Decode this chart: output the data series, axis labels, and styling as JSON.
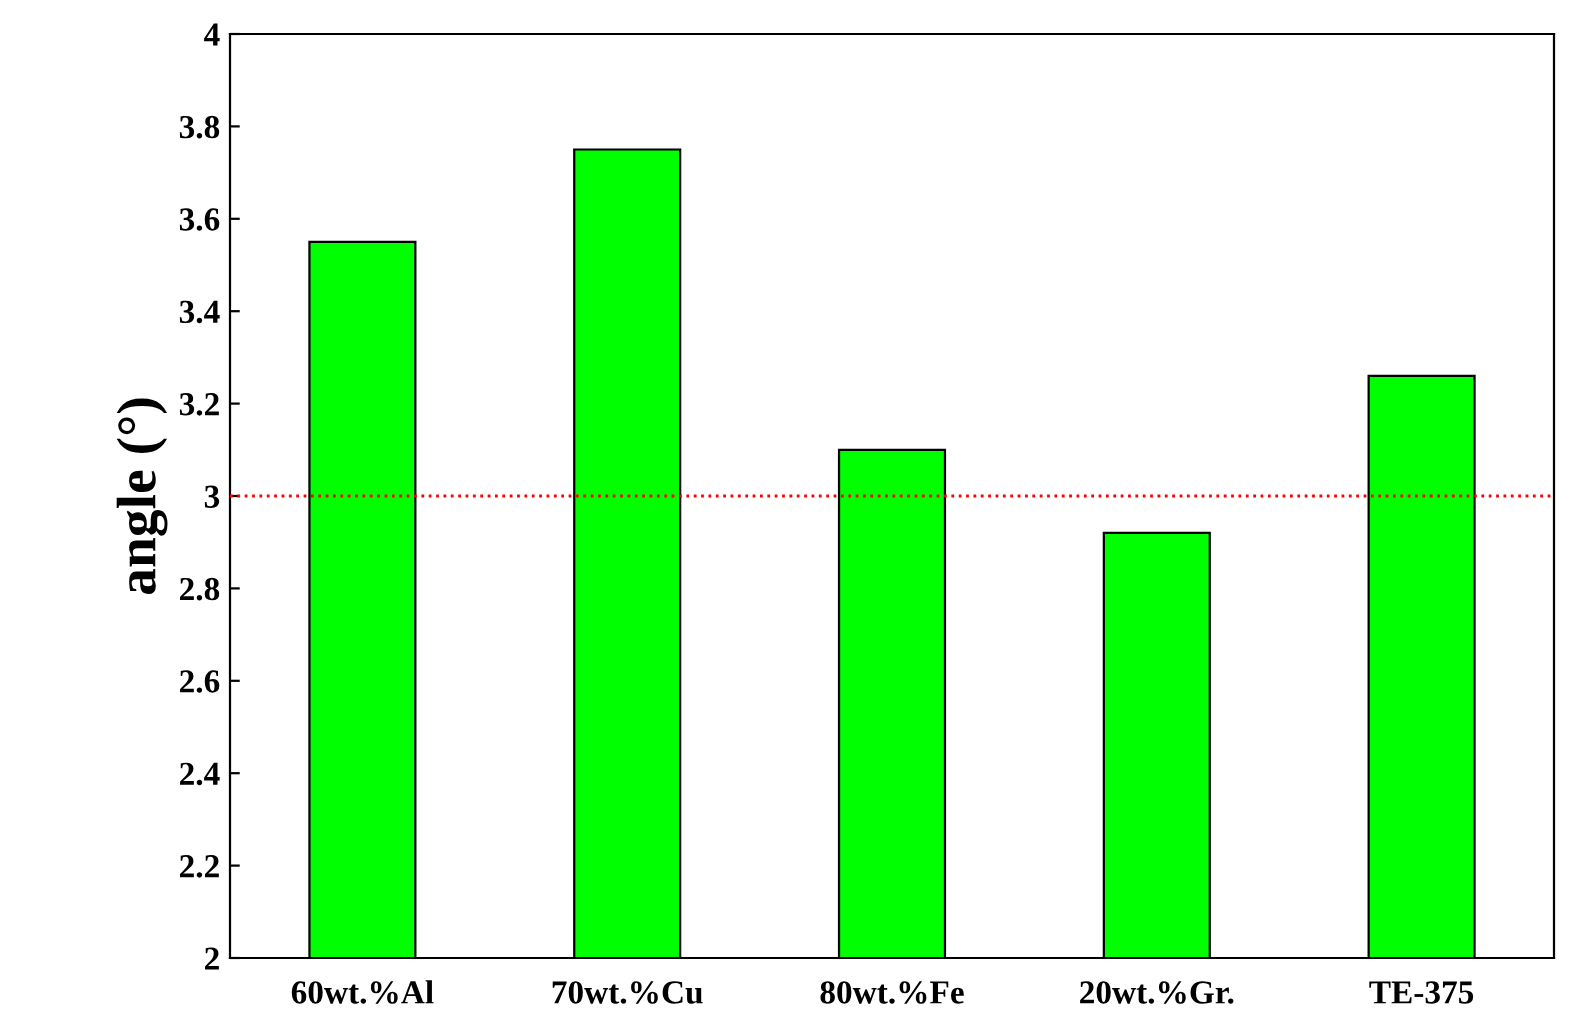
{
  "chart_data": {
    "type": "bar",
    "ylabel": "angle (°)",
    "categories": [
      "60wt.%Al",
      "70wt.%Cu",
      "80wt.%Fe",
      "20wt.%Gr.",
      "TE-375"
    ],
    "values": [
      3.55,
      3.75,
      3.1,
      2.92,
      3.26
    ],
    "color": "#00ff00",
    "ylim": [
      2,
      4
    ],
    "yticks": [
      2,
      2.2,
      2.4,
      2.6,
      2.8,
      3,
      3.2,
      3.4,
      3.6,
      3.8,
      4
    ],
    "grid": false,
    "ref_lines": [
      {
        "axis": "y",
        "value": 3,
        "color": "#ff0000",
        "line_style": "dotted"
      }
    ]
  }
}
